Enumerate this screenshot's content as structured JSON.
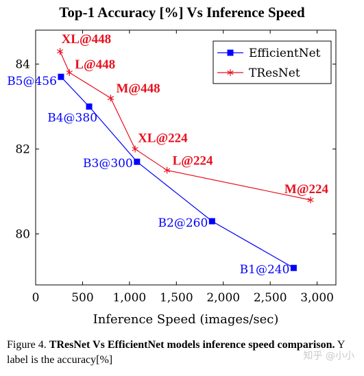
{
  "chart_data": {
    "type": "line",
    "title": "Top-1 Accuracy [%] Vs Inference Speed",
    "xlabel": "Inference Speed (images/sec)",
    "ylabel": "",
    "xlim": [
      0,
      3200
    ],
    "ylim": [
      78.8,
      84.8
    ],
    "xticks": [
      0,
      500,
      1000,
      1500,
      2000,
      2500,
      3000
    ],
    "xtick_labels": [
      "0",
      "500",
      "1,000",
      "1,500",
      "2,000",
      "2,500",
      "3,000"
    ],
    "yticks": [
      80,
      82,
      84
    ],
    "ytick_labels": [
      "80",
      "82",
      "84"
    ],
    "grid": false,
    "legend_position": "top-right",
    "series": [
      {
        "name": "EfficientNet",
        "color": "#0000ff",
        "marker": "square",
        "points": [
          {
            "x": 270,
            "y": 83.7,
            "label": "B5@456"
          },
          {
            "x": 570,
            "y": 83.0,
            "label": "B4@380"
          },
          {
            "x": 1080,
            "y": 81.7,
            "label": "B3@300"
          },
          {
            "x": 1880,
            "y": 80.3,
            "label": "B2@260"
          },
          {
            "x": 2750,
            "y": 79.2,
            "label": "B1@240"
          }
        ]
      },
      {
        "name": "TResNet",
        "color": "#e8101e",
        "marker": "star",
        "points": [
          {
            "x": 260,
            "y": 84.3,
            "label": "XL@448"
          },
          {
            "x": 360,
            "y": 83.8,
            "label": "L@448"
          },
          {
            "x": 800,
            "y": 83.2,
            "label": "M@448"
          },
          {
            "x": 1060,
            "y": 82.0,
            "label": "XL@224"
          },
          {
            "x": 1400,
            "y": 81.5,
            "label": "L@224"
          },
          {
            "x": 2930,
            "y": 80.8,
            "label": "M@224"
          }
        ]
      }
    ]
  },
  "caption": {
    "prefix": "Figure 4. ",
    "bold": "TResNet Vs EfficientNet models inference speed comparison.",
    "rest": " Y label is the accuracy[%]"
  },
  "watermark": "知乎 @小小"
}
